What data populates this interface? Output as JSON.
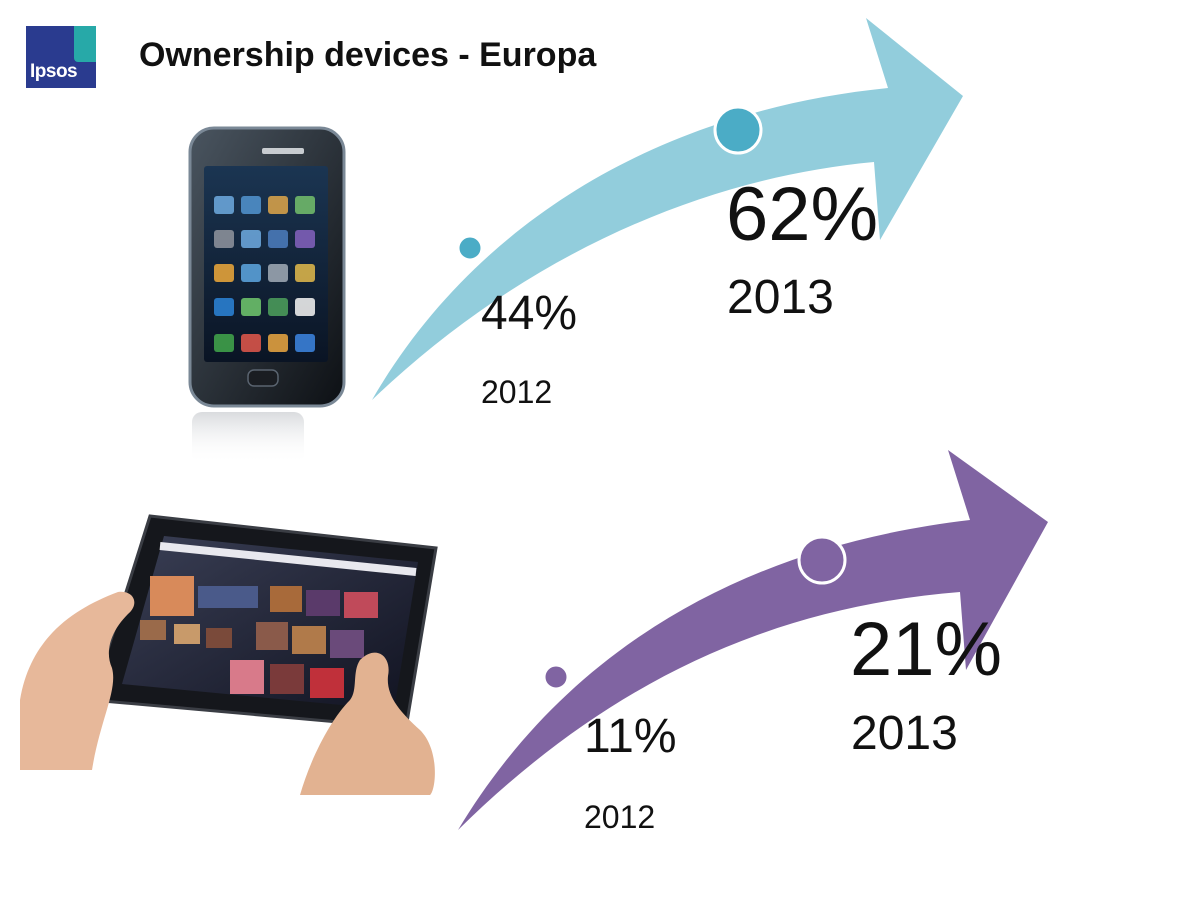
{
  "logo": {
    "text": "Ipsos"
  },
  "header": {
    "title": "Ownership devices - Europa"
  },
  "colors": {
    "smartphone_arrow": "#92CDDC",
    "smartphone_dot": "#4BACC6",
    "tablet_arrow": "#8064A2",
    "logo_blue": "#2A3B8F",
    "logo_teal": "#27A9A8"
  },
  "smartphone": {
    "image": "samsung-smartphone",
    "start": {
      "value": "44%",
      "year": "2012"
    },
    "end": {
      "value": "62%",
      "year": "2013"
    }
  },
  "tablet": {
    "image": "tablet-in-hands",
    "start": {
      "value": "11%",
      "year": "2012"
    },
    "end": {
      "value": "21%",
      "year": "2013"
    }
  }
}
